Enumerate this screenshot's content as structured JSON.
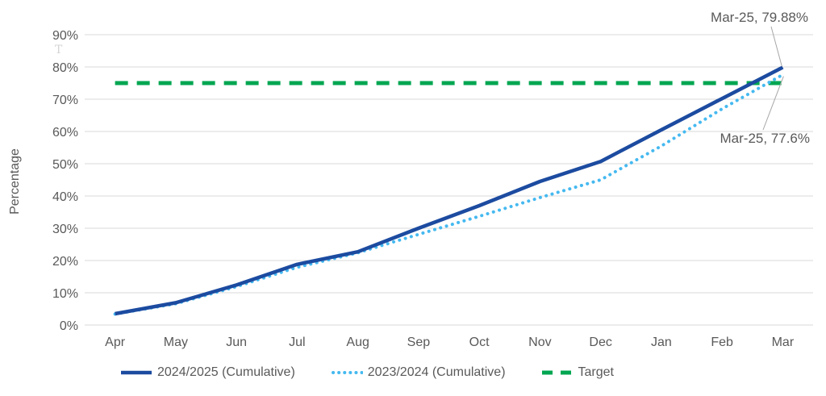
{
  "chart_data": {
    "type": "line",
    "title": "",
    "ylabel": "Percentage",
    "xlabel": "",
    "categories": [
      "Apr",
      "May",
      "Jun",
      "Jul",
      "Aug",
      "Sep",
      "Oct",
      "Nov",
      "Dec",
      "Jan",
      "Feb",
      "Mar"
    ],
    "series": [
      {
        "name": "2024/2025 (Cumulative)",
        "style": "solid",
        "color": "#1c4ba0",
        "values": [
          3.5,
          6.9,
          12.4,
          18.8,
          22.7,
          30.0,
          37.0,
          44.5,
          50.7,
          60.5,
          70.2,
          79.88
        ]
      },
      {
        "name": "2023/2024 (Cumulative)",
        "style": "dotted",
        "color": "#45b9f0",
        "values": [
          3.4,
          6.6,
          11.9,
          17.9,
          22.4,
          28.1,
          33.7,
          39.5,
          45.0,
          55.5,
          67.0,
          77.6
        ]
      },
      {
        "name": "Target",
        "style": "dashed",
        "color": "#00a651",
        "constant": 75
      }
    ],
    "ylim": [
      0,
      90
    ],
    "ytick_step": 10,
    "ytick_format": "percent",
    "grid": "horizontal",
    "gridline_color": "#d9d9d9",
    "axis_text_color": "#595959",
    "legend_position": "bottom",
    "annotations": [
      {
        "text": "Mar-25, 79.88%",
        "series": 0
      },
      {
        "text": "Mar-25, 77.6%",
        "series": 1
      }
    ]
  },
  "artifacts": {
    "text_cursor": "T"
  }
}
